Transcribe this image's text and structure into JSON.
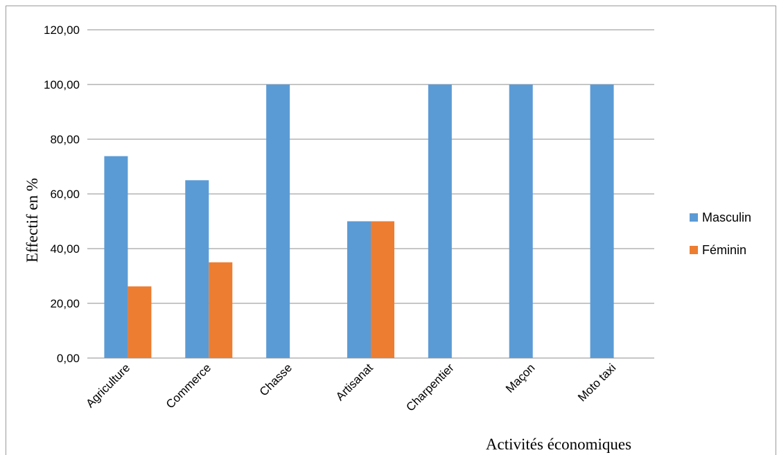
{
  "chart_data": {
    "type": "bar",
    "categories": [
      "Agriculture",
      "Commerce",
      "Chasse",
      "Artisanat",
      "Charpentier",
      "Maçon",
      "Moto taxi"
    ],
    "series": [
      {
        "name": "Masculin",
        "values": [
          73.8,
          65.0,
          100.0,
          50.0,
          100.0,
          100.0,
          100.0
        ],
        "color": "#5b9bd5"
      },
      {
        "name": "Féminin",
        "values": [
          26.2,
          35.0,
          0,
          50.0,
          0,
          0,
          0
        ],
        "color": "#ed7d31"
      }
    ],
    "ylabel": "Effectif en %",
    "xlabel": "Activités économiques",
    "ylim": [
      0,
      120
    ],
    "yticks": [
      "0,00",
      "20,00",
      "40,00",
      "60,00",
      "80,00",
      "100,00",
      "120,00"
    ],
    "grid": true,
    "legend": "right"
  }
}
